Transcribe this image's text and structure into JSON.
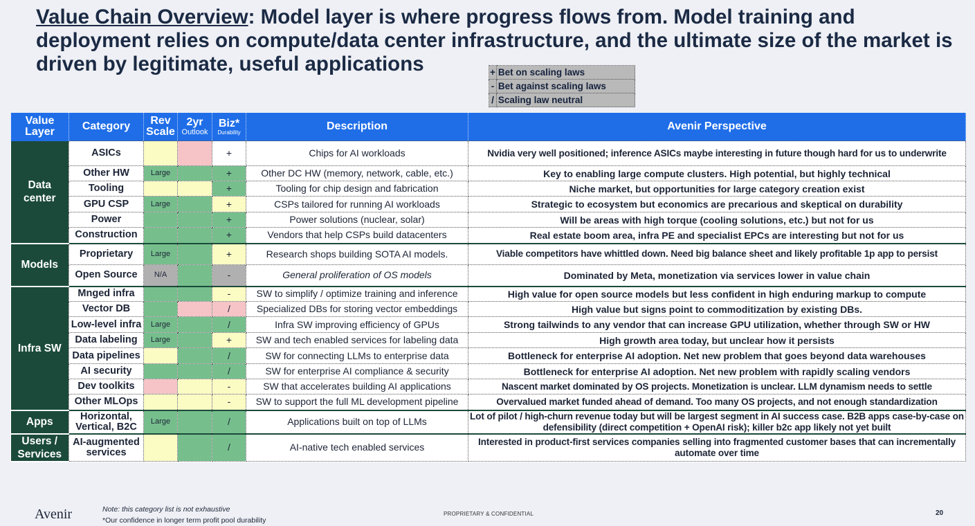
{
  "title": {
    "underlined": "Value Chain Overview",
    "rest": ": Model layer is where progress flows from. Model training and deployment relies on compute/data center infrastructure, and the ultimate size of the market is driven by legitimate, useful applications"
  },
  "legend": [
    {
      "symbol": "+",
      "label": "Bet on scaling laws"
    },
    {
      "symbol": "-",
      "label": "Bet against scaling laws"
    },
    {
      "symbol": "/",
      "label": "Scaling law neutral"
    }
  ],
  "headers": {
    "value_layer": "Value Layer",
    "category": "Category",
    "rev": "Rev",
    "scale": "Scale",
    "two_yr": "2yr",
    "outlook": "Outlook",
    "biz": "Biz*",
    "durability": "Durability",
    "description": "Description",
    "perspective": "Avenir Perspective"
  },
  "colors": {
    "header_blue": "#1f6ee8",
    "layer_green": "#1b4a3a",
    "green": "#76bf8d",
    "yellow": "#fbfbc4",
    "pink": "#f6c4c6",
    "grey": "#b0b0b0",
    "white": "#ffffff"
  },
  "layers": [
    {
      "name": "Data center",
      "rows": [
        {
          "category": "ASICs",
          "rev": "",
          "rev_color": "yellow",
          "outlook_color": "pink",
          "biz": "+",
          "biz_color": "white",
          "description": "Chips for AI workloads",
          "perspective": "Nvidia very well positioned; inference ASICs maybe interesting in future though hard for us to underwrite"
        },
        {
          "category": "Other HW",
          "rev": "Large",
          "rev_color": "green",
          "outlook_color": "green",
          "biz": "+",
          "biz_color": "green",
          "description": "Other DC HW (memory, network, cable, etc.)",
          "perspective": "Key to enabling large compute clusters. High potential, but highly technical"
        },
        {
          "category": "Tooling",
          "rev": "",
          "rev_color": "yellow",
          "outlook_color": "yellow",
          "biz": "+",
          "biz_color": "green",
          "description": "Tooling for chip design and fabrication",
          "perspective": "Niche market, but opportunities for large category creation exist"
        },
        {
          "category": "GPU CSP",
          "rev": "Large",
          "rev_color": "green",
          "outlook_color": "green",
          "biz": "+",
          "biz_color": "yellow",
          "description": "CSPs tailored for running AI workloads",
          "perspective": "Strategic to ecosystem but economics are precarious and skeptical on durability"
        },
        {
          "category": "Power",
          "rev": "",
          "rev_color": "green",
          "outlook_color": "green",
          "biz": "+",
          "biz_color": "green",
          "description": "Power solutions (nuclear, solar)",
          "perspective": "Will be areas with high torque (cooling solutions,  etc.) but not for us"
        },
        {
          "category": "Construction",
          "rev": "",
          "rev_color": "green",
          "outlook_color": "green",
          "biz": "+",
          "biz_color": "green",
          "description": "Vendors that help CSPs build datacenters",
          "perspective": "Real estate boom area, infra PE and specialist EPCs are interesting but not for us"
        }
      ]
    },
    {
      "name": "Models",
      "rows": [
        {
          "category": "Proprietary",
          "rev": "Large",
          "rev_color": "green",
          "outlook_color": "green",
          "biz": "+",
          "biz_color": "yellow",
          "description": "Research shops building SOTA AI models.",
          "perspective": "Viable competitors have whittled down. Need big balance sheet and likely profitable 1p app to persist"
        },
        {
          "category": "Open Source",
          "rev": "N/A",
          "rev_color": "grey",
          "outlook_color": "green",
          "biz": "-",
          "biz_color": "grey",
          "description": "General proliferation of OS models",
          "perspective": "Dominated by Meta, monetization via services lower in value chain"
        }
      ]
    },
    {
      "name": "Infra SW",
      "rows": [
        {
          "category": "Mnged infra",
          "rev": "",
          "rev_color": "green",
          "outlook_color": "green",
          "biz": "-",
          "biz_color": "yellow",
          "description": "SW to simplify / optimize training and inference",
          "perspective": "High value for open source models but less confident in high enduring markup to compute"
        },
        {
          "category": "Vector DB",
          "rev": "",
          "rev_color": "green",
          "outlook_color": "pink",
          "biz": "/",
          "biz_color": "pink",
          "description": "Specialized DBs for storing vector embeddings",
          "perspective": "High value but signs point to commoditization by existing DBs."
        },
        {
          "category": "Low-level infra",
          "rev": "Large",
          "rev_color": "green",
          "outlook_color": "green",
          "biz": "/",
          "biz_color": "green",
          "description": "Infra SW improving efficiency of GPUs",
          "perspective": "Strong tailwinds to any vendor that can increase GPU utilization, whether through SW or HW"
        },
        {
          "category": "Data labeling",
          "rev": "Large",
          "rev_color": "green",
          "outlook_color": "green",
          "biz": "+",
          "biz_color": "yellow",
          "description": "SW and tech enabled services for labeling data",
          "perspective": "High growth area today, but unclear how it persists"
        },
        {
          "category": "Data pipelines",
          "rev": "",
          "rev_color": "yellow",
          "outlook_color": "green",
          "biz": "/",
          "biz_color": "green",
          "description": "SW for connecting LLMs to enterprise data",
          "perspective": "Bottleneck for enterprise AI adoption. Net new problem that goes beyond data warehouses"
        },
        {
          "category": "AI security",
          "rev": "",
          "rev_color": "green",
          "outlook_color": "green",
          "biz": "/",
          "biz_color": "green",
          "description": "SW for enterprise AI compliance & security",
          "perspective": "Bottleneck for enterprise AI adoption. Net new problem with rapidly scaling vendors"
        },
        {
          "category": "Dev toolkits",
          "rev": "",
          "rev_color": "pink",
          "outlook_color": "yellow",
          "biz": "-",
          "biz_color": "yellow",
          "description": "SW that accelerates building AI applications",
          "perspective": "Nascent market dominated by OS projects. Monetization is unclear. LLM dynamism needs to settle"
        },
        {
          "category": "Other MLOps",
          "rev": "",
          "rev_color": "yellow",
          "outlook_color": "yellow",
          "biz": "-",
          "biz_color": "yellow",
          "description": "SW to support the full ML development pipeline",
          "perspective": "Overvalued market funded ahead of demand. Too many OS projects, and not enough standardization"
        }
      ]
    },
    {
      "name": "Apps",
      "rows": [
        {
          "category": "Horizontal, Vertical, B2C",
          "rev": "Large",
          "rev_color": "green",
          "outlook_color": "green",
          "biz": "/",
          "biz_color": "green",
          "description": "Applications built on top of LLMs",
          "perspective": "Lot of pilot / high-churn revenue today but will be largest segment in AI success case. B2B apps case-by-case on defensibility (direct competition + OpenAI risk); killer b2c app likely not yet built"
        }
      ]
    },
    {
      "name": "Users / Services",
      "rows": [
        {
          "category": "AI-augmented services",
          "rev": "",
          "rev_color": "yellow",
          "outlook_color": "green",
          "biz": "/",
          "biz_color": "green",
          "description": "AI-native tech enabled services",
          "perspective": "Interested in product-first services companies selling into fragmented customer bases that can incrementally automate over time"
        }
      ]
    }
  ],
  "footer": {
    "logo": "Avenir",
    "note": "Note: this category list is not exhaustive",
    "footnote": "*Our confidence in longer term profit pool durability",
    "confidential": "PROPRIETARY & CONFIDENTIAL",
    "page": "20"
  }
}
